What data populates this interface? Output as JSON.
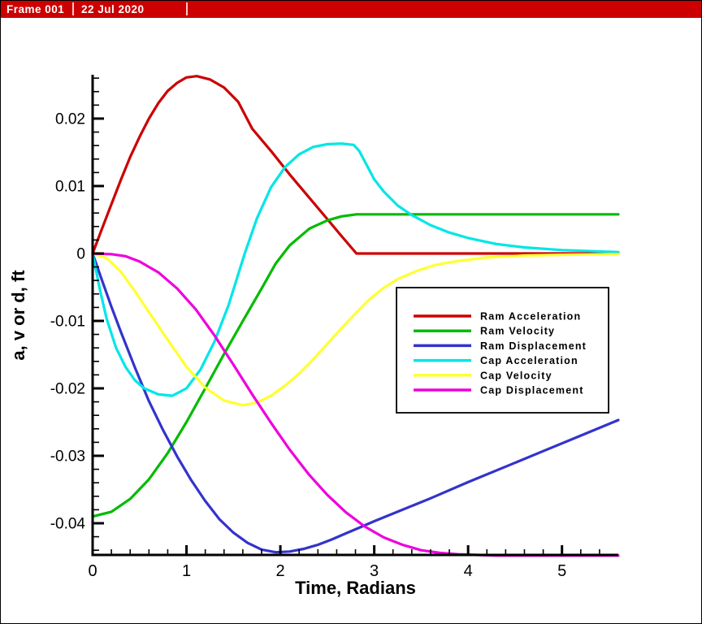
{
  "frame_header": {
    "title": "Frame 001",
    "date": "22 Jul 2020",
    "bg_color": "#CC0000",
    "fg_color": "#FFFFFF"
  },
  "chart_data": {
    "type": "line",
    "title": "",
    "xlabel": "Time, Radians",
    "ylabel": "a, v or d, ft",
    "xlim": [
      0,
      5.6
    ],
    "ylim": [
      -0.0447,
      0.0265
    ],
    "grid": false,
    "legend_position": "inside-right",
    "x_major_ticks": [
      0,
      1,
      2,
      3,
      4,
      5
    ],
    "x_major_labels": [
      "0",
      "1",
      "2",
      "3",
      "4",
      "5"
    ],
    "x_minor_step": 0.2,
    "y_major_ticks": [
      0.02,
      0.01,
      0,
      -0.01,
      -0.02,
      -0.03,
      -0.04
    ],
    "y_major_labels": [
      "0.02",
      "0.01",
      "0",
      "-0.01",
      "-0.02",
      "-0.03",
      "-0.04"
    ],
    "y_minor_step": 0.002,
    "axis_color": "#000000",
    "series": [
      {
        "name": "Ram Acceleration",
        "color": "#CC0000",
        "points": [
          [
            0,
            0
          ],
          [
            0.1,
            0.0037
          ],
          [
            0.2,
            0.0073
          ],
          [
            0.3,
            0.0109
          ],
          [
            0.4,
            0.0143
          ],
          [
            0.5,
            0.0173
          ],
          [
            0.6,
            0.02
          ],
          [
            0.7,
            0.0223
          ],
          [
            0.8,
            0.0241
          ],
          [
            0.9,
            0.0253
          ],
          [
            1.0,
            0.0261
          ],
          [
            1.11,
            0.0263
          ],
          [
            1.25,
            0.0258
          ],
          [
            1.4,
            0.0246
          ],
          [
            1.55,
            0.0225
          ],
          [
            1.7,
            0.0185
          ],
          [
            1.9,
            0.0152
          ],
          [
            2.1,
            0.0117
          ],
          [
            2.3,
            0.0084
          ],
          [
            2.5,
            0.0051
          ],
          [
            2.65,
            0.0026
          ],
          [
            2.81,
            0
          ],
          [
            3.0,
            0
          ],
          [
            3.5,
            0
          ],
          [
            4.0,
            0
          ],
          [
            4.5,
            0
          ],
          [
            5.0,
            0
          ],
          [
            5.6,
            0
          ]
        ]
      },
      {
        "name": "Ram Velocity",
        "color": "#00BB00",
        "points": [
          [
            0,
            -0.039
          ],
          [
            0.2,
            -0.0383
          ],
          [
            0.4,
            -0.0364
          ],
          [
            0.6,
            -0.0335
          ],
          [
            0.8,
            -0.0296
          ],
          [
            1.0,
            -0.025
          ],
          [
            1.2,
            -0.02
          ],
          [
            1.4,
            -0.0149
          ],
          [
            1.6,
            -0.01
          ],
          [
            1.8,
            -0.0052
          ],
          [
            1.95,
            -0.0015
          ],
          [
            2.1,
            0.0012
          ],
          [
            2.31,
            0.0037
          ],
          [
            2.5,
            0.0049
          ],
          [
            2.65,
            0.0055
          ],
          [
            2.81,
            0.0058
          ],
          [
            3.2,
            0.0058
          ],
          [
            3.8,
            0.0058
          ],
          [
            4.4,
            0.0058
          ],
          [
            5.0,
            0.0058
          ],
          [
            5.6,
            0.0058
          ]
        ]
      },
      {
        "name": "Ram Displacement",
        "color": "#3333CC",
        "points": [
          [
            0,
            0
          ],
          [
            0.1,
            -0.004
          ],
          [
            0.2,
            -0.0079
          ],
          [
            0.3,
            -0.0116
          ],
          [
            0.45,
            -0.0169
          ],
          [
            0.6,
            -0.0219
          ],
          [
            0.75,
            -0.0262
          ],
          [
            0.9,
            -0.0301
          ],
          [
            1.05,
            -0.0336
          ],
          [
            1.2,
            -0.0367
          ],
          [
            1.35,
            -0.0394
          ],
          [
            1.5,
            -0.0414
          ],
          [
            1.65,
            -0.0429
          ],
          [
            1.8,
            -0.0439
          ],
          [
            1.95,
            -0.0443
          ],
          [
            2.1,
            -0.0442
          ],
          [
            2.25,
            -0.0438
          ],
          [
            2.4,
            -0.0432
          ],
          [
            2.55,
            -0.0424
          ],
          [
            2.7,
            -0.0415
          ],
          [
            2.85,
            -0.0406
          ],
          [
            3.0,
            -0.0397
          ],
          [
            3.3,
            -0.038
          ],
          [
            3.6,
            -0.0363
          ],
          [
            4.0,
            -0.0339
          ],
          [
            4.4,
            -0.0316
          ],
          [
            4.8,
            -0.0293
          ],
          [
            5.2,
            -0.027
          ],
          [
            5.6,
            -0.0247
          ]
        ]
      },
      {
        "name": "Cap Acceleration",
        "color": "#00E6E6",
        "points": [
          [
            0,
            0
          ],
          [
            0.08,
            -0.0055
          ],
          [
            0.15,
            -0.0097
          ],
          [
            0.25,
            -0.014
          ],
          [
            0.35,
            -0.0168
          ],
          [
            0.45,
            -0.0188
          ],
          [
            0.55,
            -0.02
          ],
          [
            0.7,
            -0.0209
          ],
          [
            0.85,
            -0.0211
          ],
          [
            1.0,
            -0.02
          ],
          [
            1.15,
            -0.0172
          ],
          [
            1.3,
            -0.013
          ],
          [
            1.45,
            -0.0076
          ],
          [
            1.62,
            0
          ],
          [
            1.75,
            0.0052
          ],
          [
            1.9,
            0.0098
          ],
          [
            2.05,
            0.0128
          ],
          [
            2.2,
            0.0147
          ],
          [
            2.35,
            0.0158
          ],
          [
            2.5,
            0.0162
          ],
          [
            2.65,
            0.0163
          ],
          [
            2.78,
            0.0161
          ],
          [
            2.84,
            0.0152
          ],
          [
            2.92,
            0.0131
          ],
          [
            3.0,
            0.011
          ],
          [
            3.1,
            0.0092
          ],
          [
            3.25,
            0.0071
          ],
          [
            3.4,
            0.0057
          ],
          [
            3.6,
            0.0042
          ],
          [
            3.8,
            0.0031
          ],
          [
            4.0,
            0.0023
          ],
          [
            4.3,
            0.0014
          ],
          [
            4.6,
            0.0009
          ],
          [
            5.0,
            0.0005
          ],
          [
            5.6,
            0.0002
          ]
        ]
      },
      {
        "name": "Cap Velocity",
        "color": "#FFFF33",
        "points": [
          [
            0,
            0
          ],
          [
            0.15,
            -0.0007
          ],
          [
            0.3,
            -0.0027
          ],
          [
            0.45,
            -0.0056
          ],
          [
            0.6,
            -0.0087
          ],
          [
            0.8,
            -0.0128
          ],
          [
            1.0,
            -0.0168
          ],
          [
            1.2,
            -0.0199
          ],
          [
            1.4,
            -0.0218
          ],
          [
            1.6,
            -0.0225
          ],
          [
            1.75,
            -0.0221
          ],
          [
            1.9,
            -0.0211
          ],
          [
            2.05,
            -0.0196
          ],
          [
            2.2,
            -0.0178
          ],
          [
            2.35,
            -0.0157
          ],
          [
            2.5,
            -0.0134
          ],
          [
            2.65,
            -0.0111
          ],
          [
            2.8,
            -0.0089
          ],
          [
            2.95,
            -0.0068
          ],
          [
            3.1,
            -0.0051
          ],
          [
            3.25,
            -0.0038
          ],
          [
            3.45,
            -0.0026
          ],
          [
            3.65,
            -0.0017
          ],
          [
            3.9,
            -0.0011
          ],
          [
            4.2,
            -0.0006
          ],
          [
            4.6,
            -0.0003
          ],
          [
            5.0,
            -0.0002
          ],
          [
            5.6,
            -0.0001
          ]
        ]
      },
      {
        "name": "Cap Displacement",
        "color": "#EE00DD",
        "points": [
          [
            0,
            0
          ],
          [
            0.2,
            -0.0001
          ],
          [
            0.35,
            -0.0004
          ],
          [
            0.5,
            -0.0012
          ],
          [
            0.7,
            -0.0028
          ],
          [
            0.9,
            -0.0052
          ],
          [
            1.1,
            -0.0083
          ],
          [
            1.3,
            -0.0122
          ],
          [
            1.5,
            -0.0165
          ],
          [
            1.7,
            -0.0209
          ],
          [
            1.9,
            -0.0251
          ],
          [
            2.1,
            -0.0291
          ],
          [
            2.3,
            -0.0327
          ],
          [
            2.5,
            -0.0358
          ],
          [
            2.7,
            -0.0384
          ],
          [
            2.9,
            -0.0405
          ],
          [
            3.1,
            -0.0421
          ],
          [
            3.3,
            -0.0432
          ],
          [
            3.5,
            -0.044
          ],
          [
            3.7,
            -0.0444
          ],
          [
            3.9,
            -0.0446
          ],
          [
            4.1,
            -0.0447
          ],
          [
            4.3,
            -0.0448
          ],
          [
            4.7,
            -0.0448
          ],
          [
            5.1,
            -0.0448
          ],
          [
            5.6,
            -0.0448
          ]
        ]
      }
    ]
  }
}
